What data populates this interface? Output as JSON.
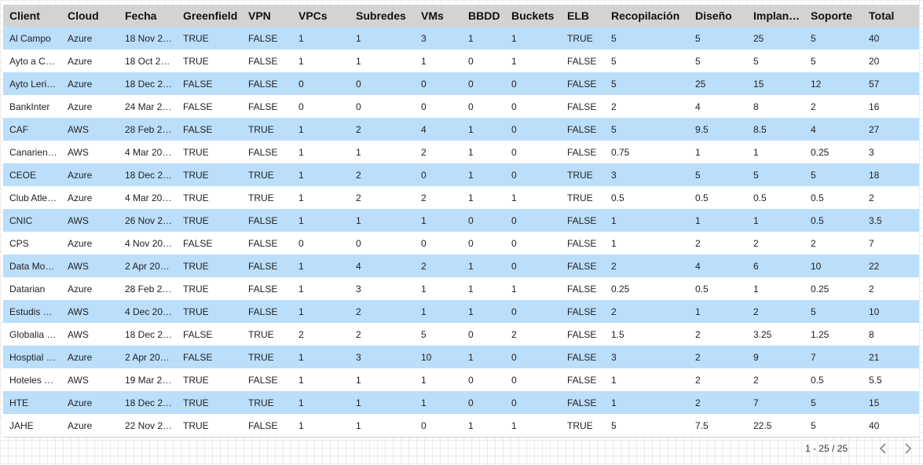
{
  "table": {
    "columns": [
      "Client",
      "Cloud",
      "Fecha",
      "Greenfield",
      "VPN",
      "VPCs",
      "Subredes",
      "VMs",
      "BBDD",
      "Buckets",
      "ELB",
      "Recopilación",
      "Diseño",
      "Implan…",
      "Soporte",
      "Total"
    ],
    "rows": [
      [
        "Al Campo",
        "Azure",
        "18 Nov 2…",
        "TRUE",
        "FALSE",
        "1",
        "1",
        "3",
        "1",
        "1",
        "TRUE",
        "5",
        "5",
        "25",
        "5",
        "40"
      ],
      [
        "Ayto a C…",
        "Azure",
        "18 Oct 2…",
        "TRUE",
        "FALSE",
        "1",
        "1",
        "1",
        "0",
        "1",
        "FALSE",
        "5",
        "5",
        "5",
        "5",
        "20"
      ],
      [
        "Ayto Leri…",
        "Azure",
        "18 Dec 2…",
        "FALSE",
        "FALSE",
        "0",
        "0",
        "0",
        "0",
        "0",
        "FALSE",
        "5",
        "25",
        "15",
        "12",
        "57"
      ],
      [
        "BankInter",
        "Azure",
        "24 Mar 2…",
        "FALSE",
        "FALSE",
        "0",
        "0",
        "0",
        "0",
        "0",
        "FALSE",
        "2",
        "4",
        "8",
        "2",
        "16"
      ],
      [
        "CAF",
        "AWS",
        "28 Feb 2…",
        "FALSE",
        "TRUE",
        "1",
        "2",
        "4",
        "1",
        "0",
        "FALSE",
        "5",
        "9.5",
        "8.5",
        "4",
        "27"
      ],
      [
        "Canarien…",
        "AWS",
        "4 Mar 20…",
        "TRUE",
        "FALSE",
        "1",
        "1",
        "2",
        "1",
        "0",
        "FALSE",
        "0.75",
        "1",
        "1",
        "0.25",
        "3"
      ],
      [
        "CEOE",
        "Azure",
        "18 Dec 2…",
        "TRUE",
        "TRUE",
        "1",
        "2",
        "0",
        "1",
        "0",
        "TRUE",
        "3",
        "5",
        "5",
        "5",
        "18"
      ],
      [
        "Club Atle…",
        "Azure",
        "4 Mar 20…",
        "TRUE",
        "TRUE",
        "1",
        "2",
        "2",
        "1",
        "1",
        "TRUE",
        "0.5",
        "0.5",
        "0.5",
        "0.5",
        "2"
      ],
      [
        "CNIC",
        "AWS",
        "26 Nov 2…",
        "TRUE",
        "FALSE",
        "1",
        "1",
        "1",
        "0",
        "0",
        "FALSE",
        "1",
        "1",
        "1",
        "0.5",
        "3.5"
      ],
      [
        "CPS",
        "Azure",
        "4 Nov 20…",
        "FALSE",
        "FALSE",
        "0",
        "0",
        "0",
        "0",
        "0",
        "FALSE",
        "1",
        "2",
        "2",
        "2",
        "7"
      ],
      [
        "Data Mo…",
        "AWS",
        "2 Apr 20…",
        "TRUE",
        "FALSE",
        "1",
        "4",
        "2",
        "1",
        "0",
        "FALSE",
        "2",
        "4",
        "6",
        "10",
        "22"
      ],
      [
        "Datarian",
        "Azure",
        "28 Feb 2…",
        "TRUE",
        "FALSE",
        "1",
        "3",
        "1",
        "1",
        "1",
        "FALSE",
        "0.25",
        "0.5",
        "1",
        "0.25",
        "2"
      ],
      [
        "Estudis …",
        "AWS",
        "4 Dec 20…",
        "TRUE",
        "FALSE",
        "1",
        "2",
        "1",
        "1",
        "0",
        "FALSE",
        "2",
        "1",
        "2",
        "5",
        "10"
      ],
      [
        "Globalia …",
        "AWS",
        "18 Dec 2…",
        "FALSE",
        "TRUE",
        "2",
        "2",
        "5",
        "0",
        "2",
        "FALSE",
        "1.5",
        "2",
        "3.25",
        "1.25",
        "8"
      ],
      [
        "Hosptial …",
        "Azure",
        "2 Apr 20…",
        "FALSE",
        "TRUE",
        "1",
        "3",
        "10",
        "1",
        "0",
        "FALSE",
        "3",
        "2",
        "9",
        "7",
        "21"
      ],
      [
        "Hoteles …",
        "AWS",
        "19 Mar 2…",
        "TRUE",
        "FALSE",
        "1",
        "1",
        "1",
        "0",
        "0",
        "FALSE",
        "1",
        "2",
        "2",
        "0.5",
        "5.5"
      ],
      [
        "HTE",
        "Azure",
        "18 Dec 2…",
        "TRUE",
        "TRUE",
        "1",
        "1",
        "1",
        "0",
        "0",
        "FALSE",
        "1",
        "2",
        "7",
        "5",
        "15"
      ],
      [
        "JAHE",
        "Azure",
        "22 Nov 2…",
        "TRUE",
        "FALSE",
        "1",
        "1",
        "0",
        "1",
        "1",
        "TRUE",
        "5",
        "7.5",
        "22.5",
        "5",
        "40"
      ]
    ]
  },
  "pagination": {
    "label": "1 - 25 / 25",
    "prev_icon": "chevron-left-icon",
    "next_icon": "chevron-right-icon"
  },
  "colors": {
    "header_bg": "#d3d3d3",
    "row_highlight": "#bbdefb",
    "row_plain": "#ffffff"
  }
}
